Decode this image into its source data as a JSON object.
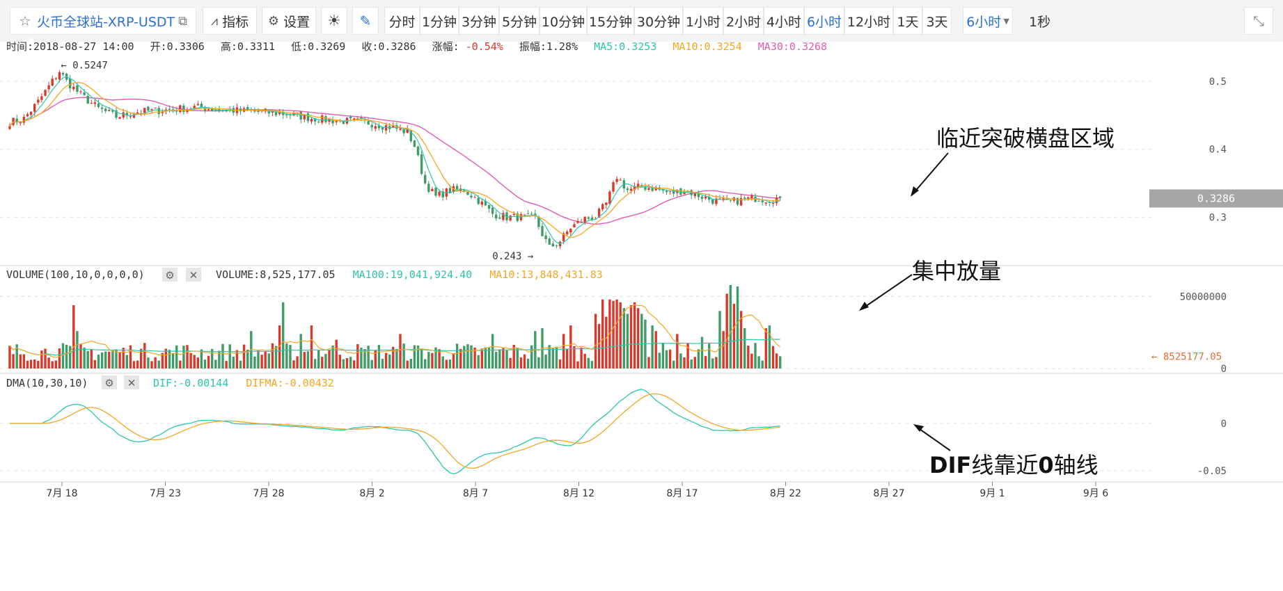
{
  "toolbar": {
    "symbol": "火币全球站-XRP-USDT",
    "indicators": "指标",
    "settings": "设置",
    "intervals": [
      "分时",
      "1分钟",
      "3分钟",
      "5分钟",
      "10分钟",
      "15分钟",
      "30分钟",
      "1小时",
      "2小时",
      "4小时",
      "6小时",
      "12小时",
      "1天",
      "3天"
    ],
    "selected_interval": "6小时",
    "interval_dropdown": "6小时",
    "refresh": "1秒"
  },
  "info_bar": {
    "time": "时间:2018-08-27 14:00",
    "open": "开:0.3306",
    "high": "高:0.3311",
    "low": "低:0.3269",
    "close": "收:0.3286",
    "change": "-0.54%",
    "change_label": "涨幅:",
    "amplitude": "振幅:1.28%",
    "ma5": "MA5:0.3253",
    "ma10": "MA10:0.3254",
    "ma30": "MA30:0.3268"
  },
  "volume_legend": {
    "name": "VOLUME(100,10,0,0,0,0)",
    "volume": "VOLUME:8,525,177.05",
    "ma100": "MA100:19,041,924.40",
    "ma10": "MA10:13,848,431.83"
  },
  "dma_legend": {
    "name": "DMA(10,30,10)",
    "dif": "DIF:-0.00144",
    "difma": "DIFMA:-0.00432"
  },
  "annotations": {
    "breakout": "临近突破横盘区域",
    "volume": "集中放量",
    "dif_prefix": "DIF",
    "dif_mid": "线靠近",
    "dif_zero": "0",
    "dif_suffix": "轴线"
  },
  "colors": {
    "up": "#d9392b",
    "down": "#3f9b67",
    "ma5": "#2cc6a9",
    "ma10": "#f5a623",
    "ma30": "#e45bb4",
    "dif": "#2cc6a9",
    "difma": "#f5a623",
    "accent": "#2a6fd6",
    "grid": "#e0e0e0"
  },
  "chart_data": [
    {
      "type": "candlestick",
      "title": "XRP-USDT 6小时",
      "x_ticks": [
        "7月 18",
        "7月 23",
        "7月 28",
        "8月 2",
        "8月 7",
        "8月 12",
        "8月 17",
        "8月 22",
        "8月 27",
        "9月 1",
        "9月 6"
      ],
      "y_ticks": [
        0.3,
        0.4,
        0.5
      ],
      "ylim": [
        0.22,
        0.56
      ],
      "price_anchors": [
        [
          0,
          0.44
        ],
        [
          4,
          0.445
        ],
        [
          8,
          0.47
        ],
        [
          12,
          0.5
        ],
        [
          14,
          0.515
        ],
        [
          16,
          0.5
        ],
        [
          20,
          0.48
        ],
        [
          25,
          0.46
        ],
        [
          30,
          0.448
        ],
        [
          36,
          0.455
        ],
        [
          45,
          0.458
        ],
        [
          52,
          0.462
        ],
        [
          60,
          0.458
        ],
        [
          70,
          0.455
        ],
        [
          78,
          0.452
        ],
        [
          86,
          0.445
        ],
        [
          92,
          0.442
        ],
        [
          100,
          0.44
        ],
        [
          108,
          0.432
        ],
        [
          112,
          0.425
        ],
        [
          114,
          0.405
        ],
        [
          117,
          0.35
        ],
        [
          120,
          0.33
        ],
        [
          124,
          0.34
        ],
        [
          128,
          0.34
        ],
        [
          132,
          0.325
        ],
        [
          136,
          0.305
        ],
        [
          140,
          0.3
        ],
        [
          144,
          0.3
        ],
        [
          148,
          0.298
        ],
        [
          150,
          0.275
        ],
        [
          152,
          0.255
        ],
        [
          155,
          0.265
        ],
        [
          158,
          0.285
        ],
        [
          162,
          0.298
        ],
        [
          165,
          0.3
        ],
        [
          168,
          0.32
        ],
        [
          171,
          0.36
        ],
        [
          174,
          0.34
        ],
        [
          178,
          0.345
        ],
        [
          182,
          0.342
        ],
        [
          186,
          0.335
        ],
        [
          190,
          0.34
        ],
        [
          194,
          0.332
        ],
        [
          198,
          0.325
        ],
        [
          202,
          0.322
        ],
        [
          206,
          0.325
        ],
        [
          210,
          0.328
        ],
        [
          214,
          0.326
        ],
        [
          217,
          0.3286
        ]
      ],
      "max_label": "0.5247",
      "min_label": "0.243",
      "last_price": "0.3286",
      "ma_periods": [
        5,
        10,
        30
      ]
    },
    {
      "type": "bar",
      "title": "VOLUME",
      "y_ticks": [
        0,
        50000000
      ],
      "y_tick_labels": [
        "0",
        "50000000"
      ],
      "ylim": [
        0,
        58000000
      ],
      "last_value": "8525177.05",
      "spikes": [
        [
          18,
          44000000
        ],
        [
          19,
          26000000
        ],
        [
          68,
          26000000
        ],
        [
          76,
          30000000
        ],
        [
          77,
          46000000
        ],
        [
          82,
          24000000
        ],
        [
          85,
          30000000
        ],
        [
          92,
          20000000
        ],
        [
          110,
          24000000
        ],
        [
          136,
          24000000
        ],
        [
          148,
          26000000
        ],
        [
          150,
          28000000
        ],
        [
          156,
          24000000
        ],
        [
          158,
          30000000
        ],
        [
          165,
          38000000
        ],
        [
          166,
          31000000
        ],
        [
          167,
          48000000
        ],
        [
          168,
          36000000
        ],
        [
          169,
          48000000
        ],
        [
          170,
          47000000
        ],
        [
          171,
          48000000
        ],
        [
          172,
          46000000
        ],
        [
          173,
          42000000
        ],
        [
          174,
          38000000
        ],
        [
          175,
          44000000
        ],
        [
          176,
          46000000
        ],
        [
          177,
          42000000
        ],
        [
          178,
          38000000
        ],
        [
          179,
          34000000
        ],
        [
          181,
          30000000
        ],
        [
          182,
          26000000
        ],
        [
          188,
          24000000
        ],
        [
          195,
          22000000
        ],
        [
          200,
          40000000
        ],
        [
          201,
          26000000
        ],
        [
          202,
          52000000
        ],
        [
          203,
          58000000
        ],
        [
          204,
          45000000
        ],
        [
          205,
          57000000
        ],
        [
          206,
          40000000
        ],
        [
          207,
          28000000
        ],
        [
          213,
          28000000
        ],
        [
          214,
          30000000
        ]
      ],
      "ma_periods": [
        10,
        100
      ]
    },
    {
      "type": "line",
      "title": "DMA(10,30,10)",
      "y_ticks": [
        0,
        -0.05
      ],
      "y_tick_labels": [
        "0",
        "-0.05"
      ],
      "ylim": [
        -0.06,
        0.036
      ],
      "series_names": [
        "DIF",
        "DIFMA"
      ]
    }
  ]
}
